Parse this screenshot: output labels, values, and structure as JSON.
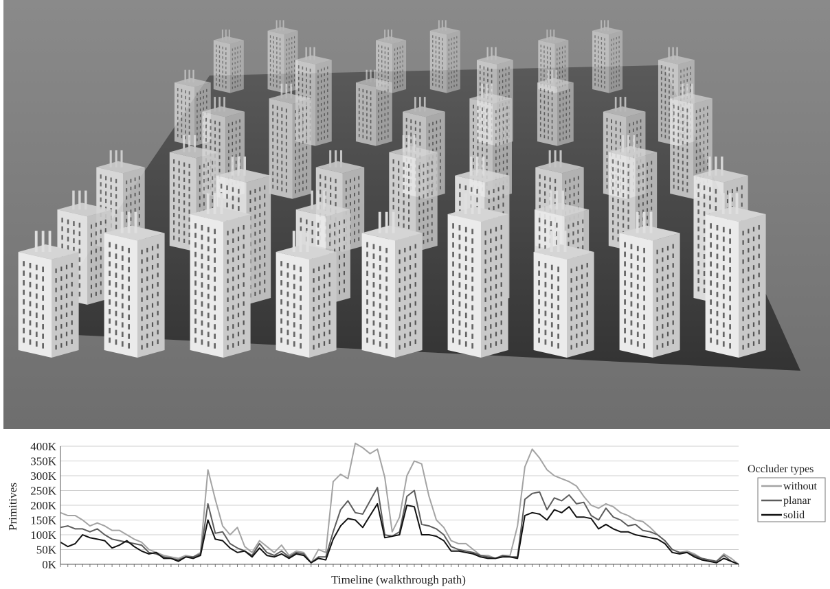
{
  "scene": {
    "description_icon": "city-buildings-render",
    "background_color": "#7a7a7a",
    "ground_color": "#3a3a3a",
    "building_color": "#f2f2f2"
  },
  "chart_data": {
    "type": "line",
    "title": "",
    "xlabel": "Timeline (walkthrough path)",
    "ylabel": "Primitives",
    "ylim": [
      0,
      400000
    ],
    "yticks": [
      "0K",
      "50K",
      "100K",
      "150K",
      "200K",
      "250K",
      "300K",
      "350K",
      "400K"
    ],
    "grid": true,
    "legend_title": "Occluder types",
    "legend_position": "right",
    "series": [
      {
        "name": "without",
        "color": "#a3a3a3",
        "values": [
          175000,
          165000,
          165000,
          150000,
          130000,
          140000,
          130000,
          115000,
          115000,
          100000,
          85000,
          75000,
          50000,
          40000,
          30000,
          25000,
          20000,
          30000,
          25000,
          40000,
          320000,
          220000,
          130000,
          100000,
          125000,
          60000,
          40000,
          80000,
          60000,
          40000,
          65000,
          30000,
          45000,
          40000,
          5000,
          50000,
          40000,
          280000,
          305000,
          290000,
          410000,
          395000,
          375000,
          390000,
          295000,
          110000,
          160000,
          300000,
          350000,
          340000,
          230000,
          150000,
          125000,
          80000,
          70000,
          70000,
          50000,
          30000,
          30000,
          20000,
          30000,
          30000,
          130000,
          330000,
          390000,
          360000,
          320000,
          300000,
          290000,
          280000,
          265000,
          230000,
          200000,
          190000,
          205000,
          195000,
          175000,
          165000,
          150000,
          145000,
          125000,
          100000,
          80000,
          50000,
          40000,
          45000,
          35000,
          20000,
          15000,
          10000,
          35000,
          20000,
          0
        ]
      },
      {
        "name": "planar",
        "color": "#5c5c5c",
        "values": [
          125000,
          130000,
          120000,
          120000,
          110000,
          120000,
          100000,
          85000,
          80000,
          75000,
          70000,
          65000,
          40000,
          35000,
          25000,
          20000,
          15000,
          25000,
          25000,
          35000,
          205000,
          105000,
          110000,
          70000,
          55000,
          45000,
          30000,
          70000,
          40000,
          30000,
          45000,
          25000,
          40000,
          35000,
          5000,
          25000,
          25000,
          110000,
          185000,
          215000,
          175000,
          170000,
          215000,
          260000,
          100000,
          95000,
          110000,
          230000,
          250000,
          135000,
          130000,
          120000,
          100000,
          60000,
          50000,
          45000,
          40000,
          30000,
          25000,
          20000,
          30000,
          25000,
          25000,
          220000,
          240000,
          245000,
          185000,
          225000,
          215000,
          235000,
          205000,
          210000,
          165000,
          150000,
          190000,
          160000,
          150000,
          130000,
          135000,
          115000,
          110000,
          100000,
          80000,
          50000,
          40000,
          40000,
          30000,
          20000,
          15000,
          10000,
          30000,
          10000,
          0
        ]
      },
      {
        "name": "solid",
        "color": "#111111",
        "values": [
          75000,
          60000,
          70000,
          100000,
          90000,
          85000,
          80000,
          55000,
          65000,
          80000,
          60000,
          45000,
          35000,
          40000,
          20000,
          20000,
          10000,
          25000,
          20000,
          30000,
          150000,
          85000,
          80000,
          55000,
          40000,
          45000,
          25000,
          55000,
          30000,
          25000,
          35000,
          20000,
          35000,
          30000,
          5000,
          20000,
          15000,
          85000,
          130000,
          155000,
          150000,
          125000,
          165000,
          205000,
          90000,
          95000,
          100000,
          200000,
          195000,
          100000,
          100000,
          95000,
          80000,
          45000,
          45000,
          40000,
          35000,
          25000,
          20000,
          20000,
          25000,
          25000,
          20000,
          165000,
          175000,
          170000,
          150000,
          185000,
          175000,
          195000,
          160000,
          160000,
          155000,
          120000,
          135000,
          120000,
          110000,
          110000,
          100000,
          95000,
          90000,
          85000,
          70000,
          40000,
          35000,
          40000,
          25000,
          15000,
          10000,
          5000,
          20000,
          10000,
          0
        ]
      }
    ]
  }
}
